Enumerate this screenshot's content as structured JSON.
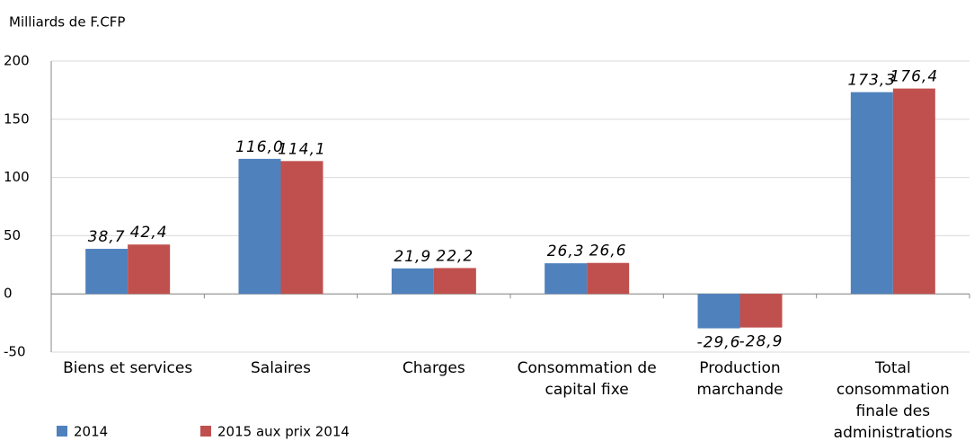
{
  "chart_data": {
    "type": "bar",
    "y_axis_label": "Milliards de F.CFP",
    "categories": [
      "Biens et services",
      "Salaires",
      "Charges",
      "Consommation de capital fixe",
      "Production marchande",
      "Total consommation finale des administrations"
    ],
    "series": [
      {
        "name": "2014",
        "color": "#4f81bd",
        "values": [
          38.7,
          116.0,
          21.9,
          26.3,
          -29.6,
          173.3
        ],
        "value_labels": [
          "38,7",
          "116,0",
          "21,9",
          "26,3",
          "-29,6",
          "173,3"
        ]
      },
      {
        "name": "2015 aux prix 2014",
        "color": "#c0504d",
        "values": [
          42.4,
          114.1,
          22.2,
          26.6,
          -28.9,
          176.4
        ],
        "value_labels": [
          "42,4",
          "114,1",
          "22,2",
          "26,6",
          "-28,9",
          "176,4"
        ]
      }
    ],
    "ylim": [
      -50,
      200
    ],
    "yticks": [
      -50,
      0,
      50,
      100,
      150,
      200
    ],
    "grid": true
  }
}
